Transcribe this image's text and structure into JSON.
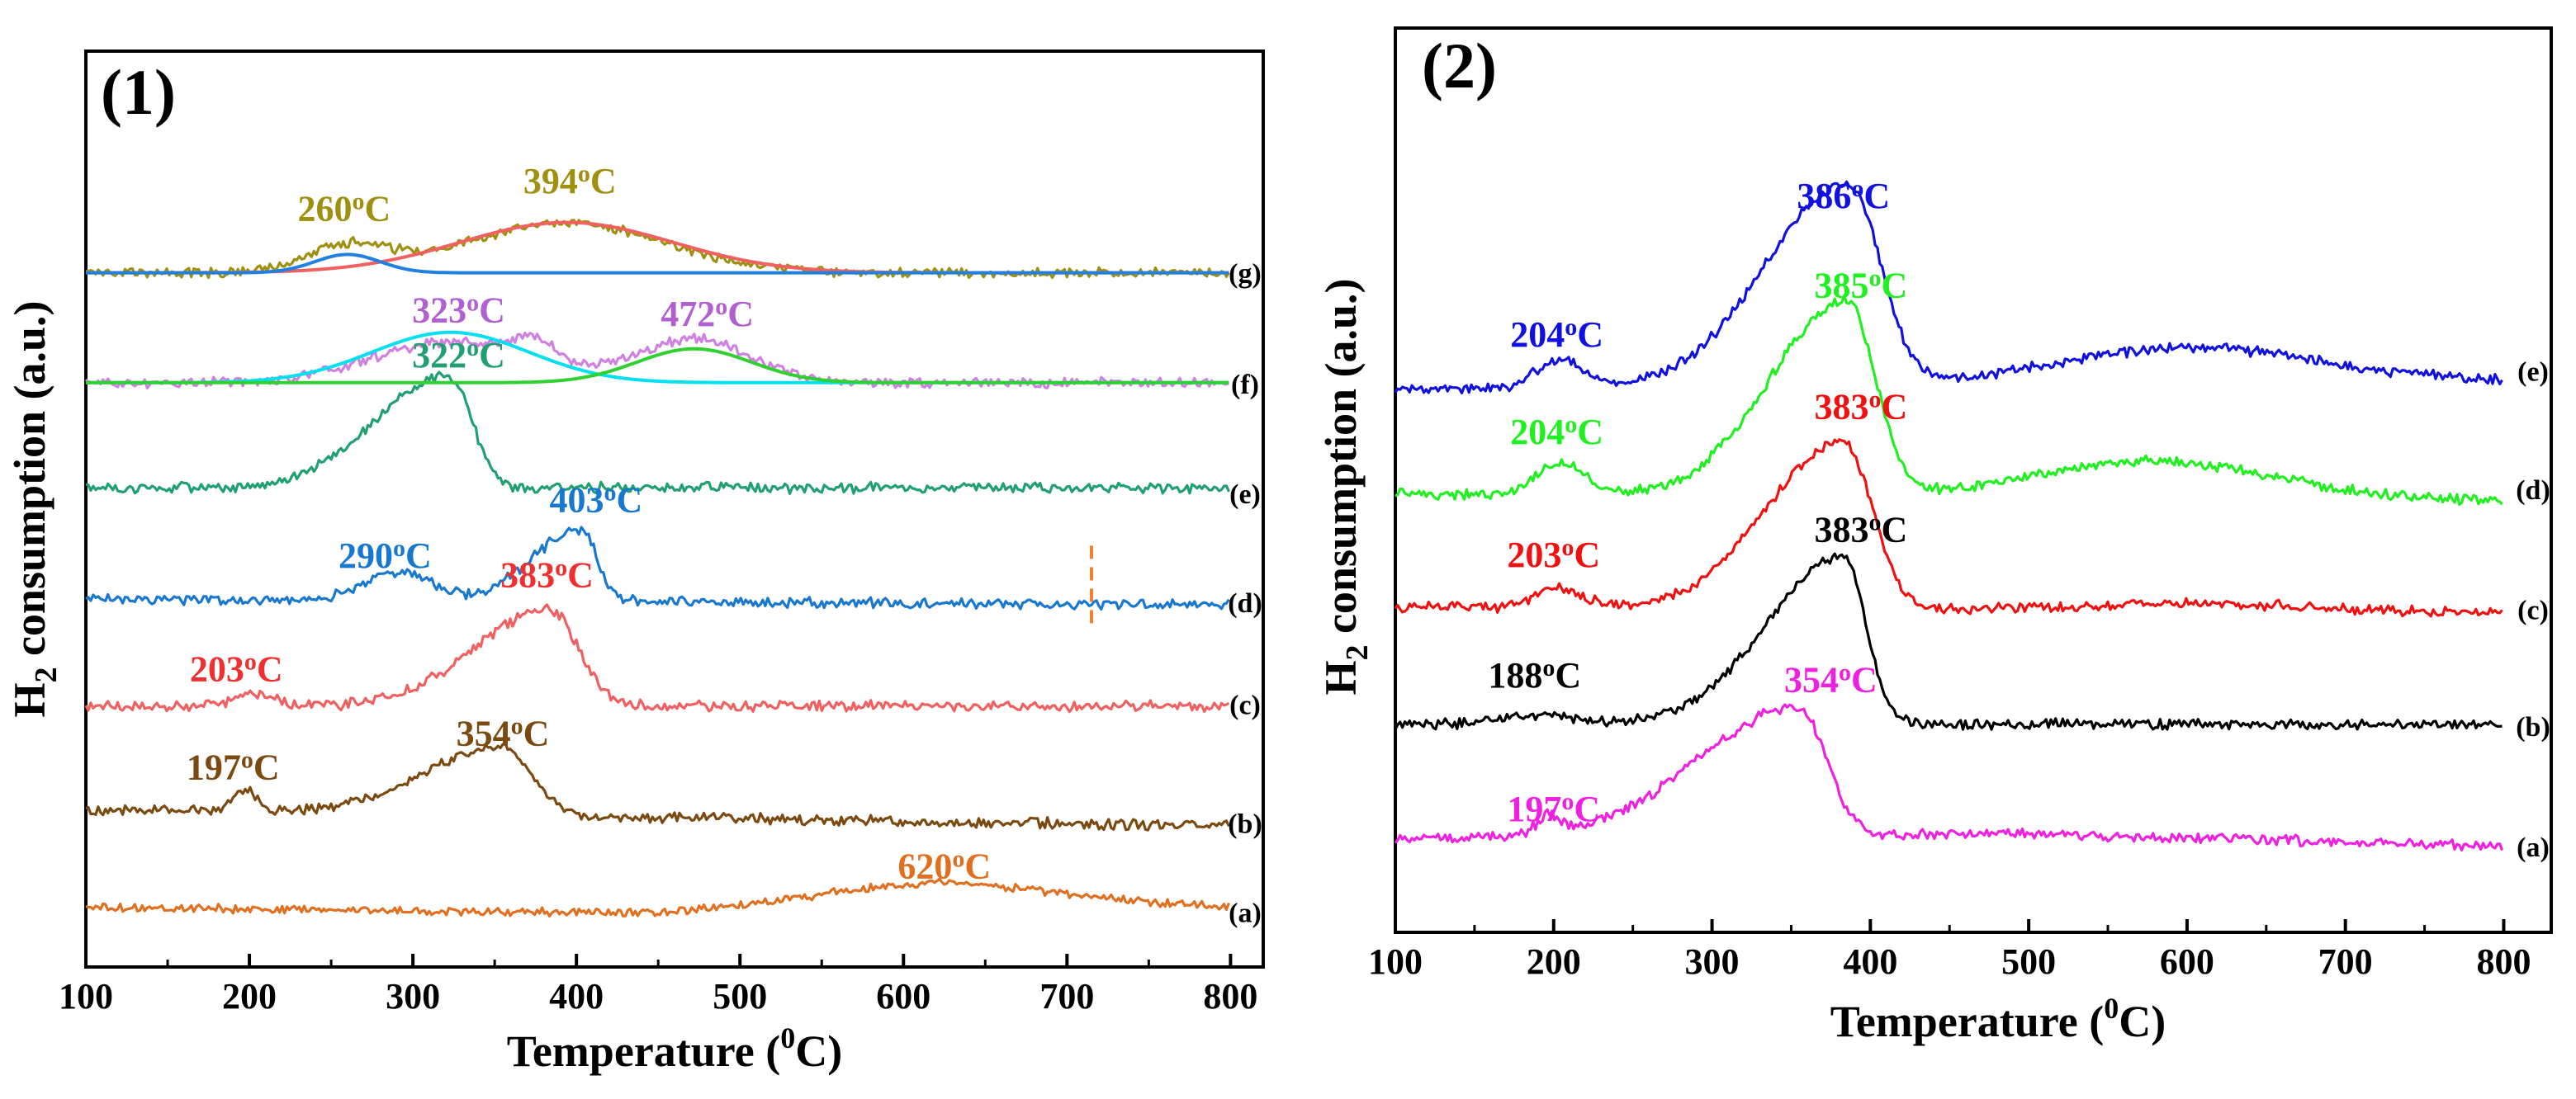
{
  "chart_data": [
    {
      "type": "line",
      "panel_label": "(1)",
      "xlabel": "Temperature (",
      "xlabel_sup": "0",
      "xlabel_end": "C)",
      "ylabel_main": "H",
      "ylabel_sub": "2",
      "ylabel_rest": " consumption (a.u.)",
      "xlim": [
        100,
        820
      ],
      "ylim": [
        0,
        100
      ],
      "x_ticks": [
        100,
        200,
        300,
        400,
        500,
        600,
        700,
        800
      ],
      "series": [
        {
          "name": "(a)",
          "color": "#E07020",
          "baseline": 6.5,
          "noise": 0.35,
          "drift": [
            [
              100,
              0
            ],
            [
              450,
              -0.6
            ],
            [
              620,
              1.6
            ],
            [
              800,
              0
            ]
          ],
          "peaks": [
            [
              620,
              1.2,
              70
            ]
          ]
        },
        {
          "name": "(b)",
          "color": "#7A4A10",
          "baseline": 17.2,
          "noise": 0.45,
          "drift": [
            [
              100,
              0
            ],
            [
              800,
              -1.8
            ]
          ],
          "peaks": [
            [
              197,
              2.3,
              7
            ],
            [
              354,
              7.5,
              48,
              18
            ]
          ]
        },
        {
          "name": "(c)",
          "color": "#F06060",
          "baseline": 28.5,
          "noise": 0.45,
          "drift": [
            [
              100,
              0
            ],
            [
              800,
              0
            ]
          ],
          "peaks": [
            [
              203,
              1.4,
              12
            ],
            [
              383,
              10.5,
              45,
              18
            ]
          ]
        },
        {
          "name": "(d)",
          "color": "#1878D0",
          "baseline": 40.2,
          "noise": 0.45,
          "drift": [
            [
              100,
              0
            ],
            [
              800,
              -0.7
            ]
          ],
          "peaks": [
            [
              290,
              3.2,
              20
            ],
            [
              403,
              7.8,
              30,
              10
            ]
          ]
        },
        {
          "name": "(e)",
          "color": "#20A070",
          "baseline": 52.3,
          "noise": 0.45,
          "drift": [
            [
              100,
              0
            ],
            [
              800,
              0
            ]
          ],
          "peaks": [
            [
              322,
              12.2,
              45,
              14
            ]
          ]
        }
      ],
      "component_series": [
        {
          "name": "(f) experimental",
          "color": "#D080E0",
          "baseline": 63.8,
          "noise": 0.45,
          "peaks": [
            [
              323,
              4.5,
              48
            ],
            [
              374,
              2.3,
              15
            ],
            [
              472,
              4.8,
              35
            ]
          ]
        },
        {
          "name": "(f) fit 1",
          "color": "#00E0F0",
          "baseline": 63.8,
          "noise": 0,
          "peaks": [
            [
              323,
              5.5,
              48
            ]
          ]
        },
        {
          "name": "(f) fit 2",
          "color": "#30D030",
          "baseline": 63.8,
          "noise": 0,
          "peaks": [
            [
              472,
              3.7,
              35
            ]
          ]
        },
        {
          "name": "(g) experimental",
          "color": "#A09010",
          "baseline": 75.8,
          "noise": 0.4,
          "peaks": [
            [
              260,
              2.8,
              25
            ],
            [
              394,
              5.5,
              60
            ]
          ]
        },
        {
          "name": "(g) fit 1",
          "color": "#F06060",
          "baseline": 75.8,
          "noise": 0,
          "peaks": [
            [
              394,
              5.5,
              65
            ]
          ]
        },
        {
          "name": "(g) fit 2",
          "color": "#2080E0",
          "baseline": 75.8,
          "noise": 0,
          "peaks": [
            [
              260,
              2.0,
              20
            ]
          ]
        }
      ],
      "curve_labels": [
        {
          "text": "(g)",
          "y": 75.8
        },
        {
          "text": "(f)",
          "y": 63.7
        },
        {
          "text": "(e)",
          "y": 51.7
        },
        {
          "text": "(d)",
          "y": 39.8
        },
        {
          "text": "(c)",
          "y": 28.7
        },
        {
          "text": "(b)",
          "y": 15.7
        },
        {
          "text": "(a)",
          "y": 6.0
        }
      ],
      "annotations": [
        {
          "text": "260",
          "color": "#A09010",
          "x": 258,
          "y": 81.5
        },
        {
          "text": "394",
          "color": "#A09010",
          "x": 396,
          "y": 84.5
        },
        {
          "text": "323",
          "color": "#B060D0",
          "x": 328,
          "y": 70.4
        },
        {
          "text": "472",
          "color": "#B060D0",
          "x": 480,
          "y": 70.0
        },
        {
          "text": "322",
          "color": "#20A070",
          "x": 328,
          "y": 65.5
        },
        {
          "text": "290",
          "color": "#1878D0",
          "x": 283,
          "y": 43.6
        },
        {
          "text": "403",
          "color": "#1878D0",
          "x": 412,
          "y": 49.7
        },
        {
          "text": "383",
          "color": "#F03030",
          "x": 382,
          "y": 41.5
        },
        {
          "text": "203",
          "color": "#F03030",
          "x": 192,
          "y": 31.2
        },
        {
          "text": "197",
          "color": "#7A4A10",
          "x": 190,
          "y": 20.5
        },
        {
          "text": "354",
          "color": "#7A4A10",
          "x": 355,
          "y": 24.2
        },
        {
          "text": "620",
          "color": "#E07020",
          "x": 625,
          "y": 9.7
        }
      ],
      "marker": {
        "type": "dashed-vertical",
        "color": "#F08030",
        "x": 715,
        "y_range": [
          37,
          46
        ]
      }
    },
    {
      "type": "line",
      "panel_label": "(2)",
      "xlabel": "Temperature (",
      "xlabel_sup": "0",
      "xlabel_end": "C)",
      "ylabel_main": "H",
      "ylabel_sub": "2",
      "ylabel_rest": " consumption (a.u.)",
      "xlim": [
        100,
        830
      ],
      "ylim": [
        0,
        100
      ],
      "x_ticks": [
        100,
        200,
        300,
        400,
        500,
        600,
        700,
        800
      ],
      "series": [
        {
          "name": "(a)",
          "color": "#F020E0",
          "baseline": 10.4,
          "noise": 0.45,
          "drift": [
            [
              100,
              0
            ],
            [
              500,
              0.5
            ],
            [
              800,
              -0.8
            ]
          ],
          "peaks": [
            [
              197,
              2.1,
              7
            ],
            [
              354,
              14.2,
              62,
              18
            ]
          ]
        },
        {
          "name": "(b)",
          "color": "#000000",
          "baseline": 23.0,
          "noise": 0.45,
          "drift": [
            [
              100,
              0
            ],
            [
              800,
              0
            ]
          ],
          "peaks": [
            [
              188,
              1.0,
              25
            ],
            [
              383,
              18.5,
              48,
              14
            ]
          ]
        },
        {
          "name": "(c)",
          "color": "#F01010",
          "baseline": 36.0,
          "noise": 0.45,
          "drift": [
            [
              100,
              0
            ],
            [
              800,
              -0.5
            ]
          ],
          "peaks": [
            [
              203,
              2.0,
              15
            ],
            [
              383,
              18.5,
              48,
              18
            ],
            [
              600,
              0.8,
              60
            ]
          ]
        },
        {
          "name": "(d)",
          "color": "#20F020",
          "baseline": 48.5,
          "noise": 0.45,
          "drift": [
            [
              100,
              0
            ],
            [
              800,
              -0.8
            ]
          ],
          "peaks": [
            [
              204,
              3.5,
              15
            ],
            [
              385,
              21.5,
              48,
              18
            ],
            [
              580,
              4.2,
              75
            ]
          ]
        },
        {
          "name": "(e)",
          "color": "#1010E0",
          "baseline": 60.0,
          "noise": 0.45,
          "drift": [
            [
              100,
              0
            ],
            [
              800,
              1.0
            ]
          ],
          "peaks": [
            [
              204,
              3.2,
              15
            ],
            [
              386,
              22.3,
              52,
              20
            ],
            [
              600,
              4.0,
              80
            ]
          ]
        }
      ],
      "component_series": [],
      "curve_labels": [
        {
          "text": "(e)",
          "y": 62.1
        },
        {
          "text": "(d)",
          "y": 49.0
        },
        {
          "text": "(c)",
          "y": 35.7
        },
        {
          "text": "(b)",
          "y": 22.8
        },
        {
          "text": "(a)",
          "y": 9.5
        }
      ],
      "annotations": [
        {
          "text": "386",
          "color": "#1010E0",
          "x": 383,
          "y": 80.1
        },
        {
          "text": "204",
          "color": "#1010E0",
          "x": 202,
          "y": 64.8
        },
        {
          "text": "385",
          "color": "#20F020",
          "x": 394,
          "y": 70.2
        },
        {
          "text": "204",
          "color": "#20F020",
          "x": 202,
          "y": 54.0
        },
        {
          "text": "383",
          "color": "#F01010",
          "x": 394,
          "y": 56.8
        },
        {
          "text": "203",
          "color": "#F01010",
          "x": 200,
          "y": 40.4
        },
        {
          "text": "383",
          "color": "#000000",
          "x": 394,
          "y": 43.2
        },
        {
          "text": "188",
          "color": "#000000",
          "x": 188,
          "y": 27.1
        },
        {
          "text": "354",
          "color": "#F020E0",
          "x": 375,
          "y": 26.6
        },
        {
          "text": "197",
          "color": "#F020E0",
          "x": 200,
          "y": 12.3
        }
      ],
      "marker": null
    }
  ],
  "units": {
    "degree_sup": "o",
    "celsius": "C"
  }
}
